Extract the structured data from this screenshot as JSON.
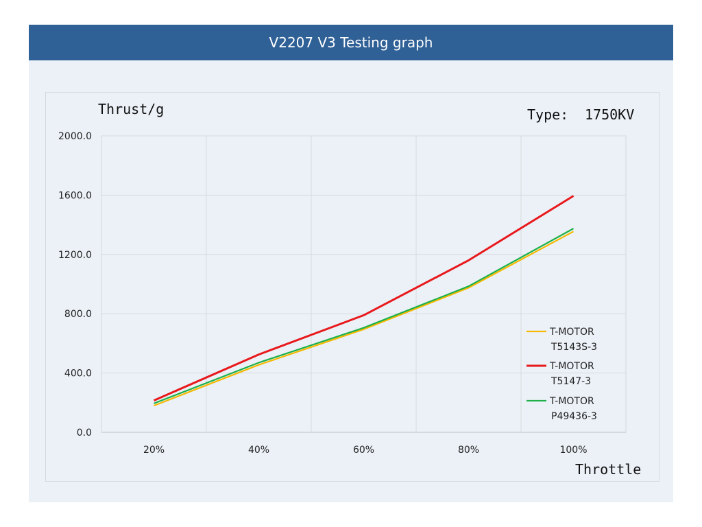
{
  "header": {
    "title": "V2207 V3 Testing graph"
  },
  "type_label": {
    "key": "Type:",
    "value": "1750KV"
  },
  "chart_data": {
    "type": "line",
    "title": "V2207 V3 Testing graph",
    "xlabel": "Throttle",
    "ylabel": "Thrust/g",
    "categories": [
      "20%",
      "40%",
      "60%",
      "80%",
      "100%"
    ],
    "yticks": [
      "0.0",
      "400.0",
      "800.0",
      "1200.0",
      "1600.0",
      "2000.0"
    ],
    "ylim": [
      0,
      2000
    ],
    "grid": true,
    "legend_position": "bottom-right",
    "series": [
      {
        "name_line1": "T-MOTOR",
        "name_line2": "T5143S-3",
        "color": "#f5b800",
        "values": [
          180,
          455,
          695,
          975,
          1355
        ]
      },
      {
        "name_line1": "T-MOTOR",
        "name_line2": "T5147-3",
        "color": "#e8191c",
        "values": [
          215,
          525,
          790,
          1160,
          1595
        ]
      },
      {
        "name_line1": "T-MOTOR",
        "name_line2": "P49436-3",
        "color": "#1db04a",
        "values": [
          195,
          470,
          705,
          985,
          1375
        ]
      }
    ]
  }
}
